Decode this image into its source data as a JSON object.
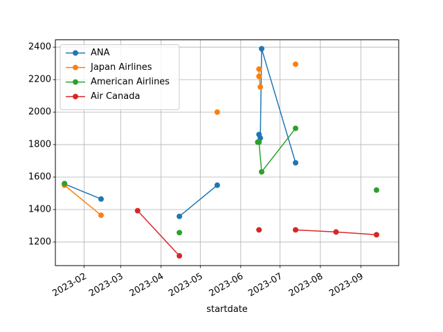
{
  "chart_data": {
    "type": "line",
    "xlabel": "startdate",
    "ylabel": "",
    "x_ticks": [
      "2023-02",
      "2023-03",
      "2023-04",
      "2023-05",
      "2023-06",
      "2023-07",
      "2023-08",
      "2023-09"
    ],
    "x_tick_dates": [
      "2023-02-01",
      "2023-03-01",
      "2023-04-01",
      "2023-05-01",
      "2023-06-01",
      "2023-07-01",
      "2023-08-01",
      "2023-09-01"
    ],
    "xlim": [
      "2023-01-10",
      "2023-09-30"
    ],
    "y_ticks": [
      1200,
      1400,
      1600,
      1800,
      2000,
      2200,
      2400
    ],
    "ylim": [
      1055,
      2445
    ],
    "grid": true,
    "legend": "top-left",
    "series": [
      {
        "name": "ANA",
        "color": "#1f77b4",
        "points": [
          {
            "x": "2023-01-17",
            "y": 1558
          },
          {
            "x": "2023-02-14",
            "y": 1465
          },
          {
            "x": null,
            "y": null
          },
          {
            "x": "2023-04-15",
            "y": 1358
          },
          {
            "x": "2023-05-14",
            "y": 1550
          },
          {
            "x": null,
            "y": null
          },
          {
            "x": "2023-06-15",
            "y": 1862
          },
          {
            "x": "2023-06-16",
            "y": 1840
          },
          {
            "x": "2023-06-17",
            "y": 2390
          },
          {
            "x": "2023-07-13",
            "y": 1688
          }
        ]
      },
      {
        "name": "Japan Airlines",
        "color": "#ff7f0e",
        "points": [
          {
            "x": "2023-01-17",
            "y": 1550
          },
          {
            "x": "2023-02-14",
            "y": 1365
          },
          {
            "x": null,
            "y": null
          },
          {
            "x": "2023-05-14",
            "y": 2000
          },
          {
            "x": null,
            "y": null
          },
          {
            "x": "2023-06-15",
            "y": 2265
          },
          {
            "x": "2023-06-15",
            "y": 2220
          },
          {
            "x": "2023-06-16",
            "y": 2155
          },
          {
            "x": null,
            "y": null
          },
          {
            "x": "2023-07-13",
            "y": 2295
          }
        ]
      },
      {
        "name": "American Airlines",
        "color": "#2ca02c",
        "points": [
          {
            "x": "2023-01-17",
            "y": 1560
          },
          {
            "x": null,
            "y": null
          },
          {
            "x": "2023-04-15",
            "y": 1258
          },
          {
            "x": null,
            "y": null
          },
          {
            "x": "2023-06-14",
            "y": 1815
          },
          {
            "x": "2023-06-15",
            "y": 1815
          },
          {
            "x": "2023-06-17",
            "y": 1632
          },
          {
            "x": "2023-07-13",
            "y": 1900
          },
          {
            "x": null,
            "y": null
          },
          {
            "x": "2023-09-13",
            "y": 1520
          }
        ]
      },
      {
        "name": "Air Canada",
        "color": "#d62728",
        "points": [
          {
            "x": "2023-03-14",
            "y": 1393
          },
          {
            "x": "2023-04-15",
            "y": 1115
          },
          {
            "x": null,
            "y": null
          },
          {
            "x": "2023-06-15",
            "y": 1275
          },
          {
            "x": null,
            "y": null
          },
          {
            "x": "2023-07-13",
            "y": 1275
          },
          {
            "x": "2023-08-13",
            "y": 1262
          },
          {
            "x": "2023-09-13",
            "y": 1245
          }
        ]
      }
    ]
  }
}
